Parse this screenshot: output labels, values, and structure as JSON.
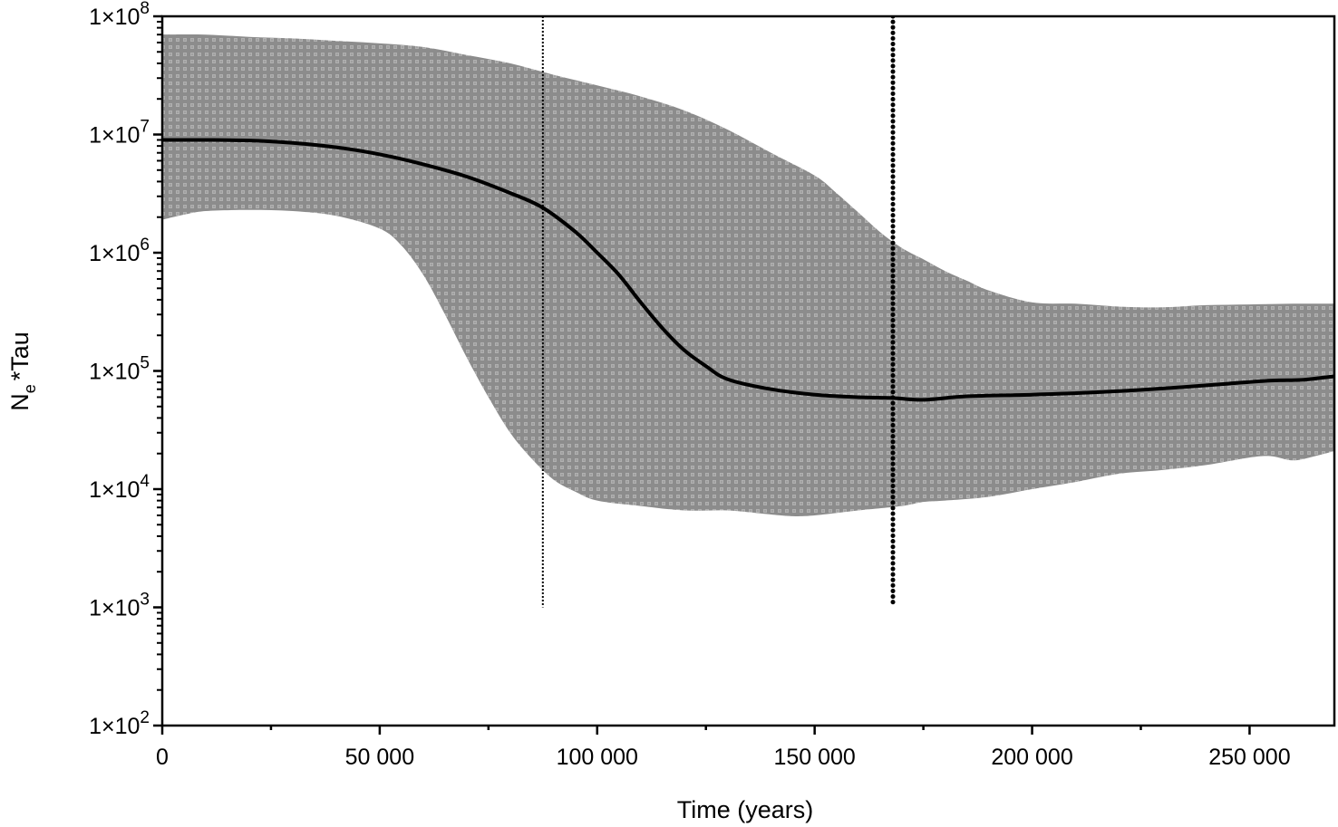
{
  "chart_data": {
    "type": "area",
    "title": "",
    "xlabel": "Time (years)",
    "ylabel": "Ne*Tau",
    "ylabel_main": "N",
    "ylabel_sub": "e",
    "ylabel_rest": "*Tau",
    "x_scale": "linear",
    "y_scale": "log",
    "xlim": [
      0,
      269500
    ],
    "ylim": [
      100,
      100000000
    ],
    "x_ticks": [
      0,
      50000,
      100000,
      150000,
      200000,
      250000
    ],
    "x_tick_labels": [
      "0",
      "50000",
      "100000",
      "150000",
      "200000",
      "250000"
    ],
    "x_tick_display": [
      "0",
      "50 000",
      "100 000",
      "150 000",
      "200 000",
      "250 000"
    ],
    "y_ticks": [
      100,
      1000,
      10000,
      100000,
      1000000,
      10000000,
      100000000
    ],
    "y_tick_labels": [
      {
        "base": "1×10",
        "exp": "2"
      },
      {
        "base": "1×10",
        "exp": "3"
      },
      {
        "base": "1×10",
        "exp": "4"
      },
      {
        "base": "1×10",
        "exp": "5"
      },
      {
        "base": "1×10",
        "exp": "6"
      },
      {
        "base": "1×10",
        "exp": "7"
      },
      {
        "base": "1×10",
        "exp": "8"
      }
    ],
    "grid": false,
    "legend": null,
    "colors": {
      "band_fill": "#8c8c8c",
      "band_pattern": "#b4b4b4",
      "median_line": "#000000",
      "axes": "#000000",
      "vlines": "#000000"
    },
    "series": [
      {
        "name": "median",
        "style": "solid",
        "x": [
          0,
          10000,
          20000,
          30000,
          40000,
          50000,
          60000,
          70000,
          80000,
          87500,
          95000,
          100000,
          105000,
          110000,
          115000,
          120000,
          125000,
          130000,
          140000,
          150000,
          160000,
          168000,
          175000,
          185000,
          200000,
          215000,
          230000,
          245000,
          255000,
          262000,
          269500
        ],
        "y": [
          9000000,
          9000000,
          8900000,
          8500000,
          7800000,
          6800000,
          5600000,
          4400000,
          3200000,
          2400000,
          1500000,
          1000000,
          650000,
          380000,
          230000,
          150000,
          110000,
          85000,
          70000,
          63000,
          60000,
          59000,
          57000,
          61000,
          63000,
          66000,
          71000,
          78000,
          83000,
          84000,
          90000
        ]
      },
      {
        "name": "upper_95_HPD",
        "style": "band-upper",
        "x": [
          0,
          10000,
          20000,
          30000,
          40000,
          50000,
          60000,
          70000,
          80000,
          90000,
          100000,
          110000,
          120000,
          130000,
          140000,
          150000,
          155000,
          160000,
          165000,
          170000,
          175000,
          180000,
          185000,
          190000,
          200000,
          210000,
          220000,
          230000,
          240000,
          250000,
          260000,
          269500
        ],
        "y": [
          70000000,
          70000000,
          67000000,
          65000000,
          62000000,
          59000000,
          55000000,
          47000000,
          40000000,
          32000000,
          26000000,
          21000000,
          16000000,
          11000000,
          7000000,
          4500000,
          3200000,
          2200000,
          1500000,
          1100000,
          880000,
          700000,
          580000,
          480000,
          380000,
          370000,
          350000,
          345000,
          360000,
          365000,
          370000,
          370000
        ]
      },
      {
        "name": "lower_95_HPD",
        "style": "band-lower",
        "x": [
          0,
          5000,
          10000,
          20000,
          30000,
          40000,
          50000,
          55000,
          60000,
          65000,
          70000,
          75000,
          80000,
          85000,
          90000,
          95000,
          100000,
          110000,
          120000,
          130000,
          140000,
          145000,
          150000,
          160000,
          170000,
          175000,
          180000,
          190000,
          200000,
          210000,
          220000,
          230000,
          240000,
          250000,
          255000,
          260000,
          265000,
          269500
        ],
        "y": [
          1900000,
          2100000,
          2250000,
          2300000,
          2250000,
          2050000,
          1600000,
          1150000,
          650000,
          300000,
          130000,
          60000,
          30000,
          18000,
          12000,
          9500,
          8000,
          7200,
          6600,
          6600,
          6100,
          5900,
          6000,
          6600,
          7200,
          7800,
          8000,
          8600,
          10000,
          11500,
          13500,
          14500,
          16000,
          18500,
          19000,
          17500,
          19000,
          21000
        ]
      }
    ],
    "vertical_lines": [
      {
        "x": 87500,
        "y_from": 1000,
        "y_to": 100000000,
        "style": "fine-dotted"
      },
      {
        "x": 168000,
        "y_from": 1000,
        "y_to": 100000000,
        "style": "bold-dotted"
      }
    ]
  }
}
